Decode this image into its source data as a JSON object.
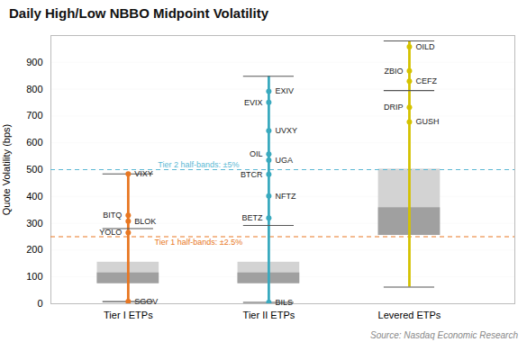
{
  "chart_data": {
    "type": "box",
    "title": "Daily High/Low NBBO Midpoint Volatility",
    "ylabel": "Quote Volatility (bps)",
    "source": "Source: Nasdaq Economic Research",
    "categories": [
      "Tier I ETPs",
      "Tier II ETPs",
      "Levered ETPs"
    ],
    "ylim": [
      0,
      1000
    ],
    "yticks": [
      0,
      100,
      200,
      300,
      400,
      500,
      600,
      700,
      800,
      900
    ],
    "grid": true,
    "box_colors": [
      "#d3d3d3",
      "#a0a0a0"
    ],
    "annotations": [
      {
        "value": 250,
        "label": "Tier 1 half-bands: ±2.5%",
        "color": "#E87722"
      },
      {
        "value": 500,
        "label": "Tier 2 half-bands: ±5%",
        "color": "#5BB8D4"
      }
    ],
    "boxes": [
      {
        "color": "#E87722",
        "whisker_low": 8,
        "whisker_high": 484,
        "q1": 75,
        "q3": 155,
        "median": 115,
        "line_top": 280,
        "dots": [
          {
            "label": "VIXY",
            "value": 484
          },
          {
            "label": "BITQ",
            "value": 330
          },
          {
            "label": "BLOK",
            "value": 308
          },
          {
            "label": "YOLO",
            "value": 265
          },
          {
            "label": "SGOV",
            "value": 8
          }
        ]
      },
      {
        "color": "#3AAABF",
        "whisker_low": 5,
        "whisker_high": 848,
        "q1": 75,
        "q3": 155,
        "median": 115,
        "line_top": 292,
        "dots": [
          {
            "label": "EXIV",
            "value": 792
          },
          {
            "label": "EVIX",
            "value": 751
          },
          {
            "label": "UVXY",
            "value": 645
          },
          {
            "label": "OIL",
            "value": 558
          },
          {
            "label": "UGA",
            "value": 535
          },
          {
            "label": "BTCR",
            "value": 482
          },
          {
            "label": "NFTZ",
            "value": 402
          },
          {
            "label": "BETZ",
            "value": 320
          },
          {
            "label": "BILS",
            "value": 5
          }
        ]
      },
      {
        "color": "#D4C200",
        "whisker_low": 62,
        "whisker_high": 980,
        "q1": 255,
        "q3": 502,
        "median": 358,
        "line_top": 795,
        "dots": [
          {
            "label": "OILD",
            "value": 958
          },
          {
            "label": "ZBIO",
            "value": 868
          },
          {
            "label": "CEFZ",
            "value": 830
          },
          {
            "label": "DRIP",
            "value": 732
          },
          {
            "label": "GUSH",
            "value": 678
          }
        ]
      }
    ]
  }
}
